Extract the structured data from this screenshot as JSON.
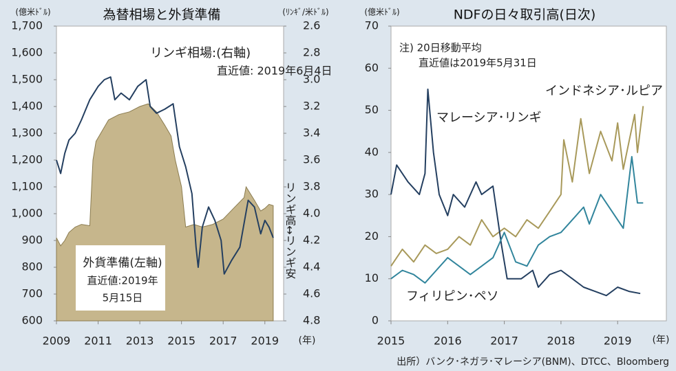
{
  "chart_data": [
    {
      "type": "combo",
      "title": "為替相場と外貨準備",
      "y_label": "(億米ﾄﾞﾙ)",
      "y2_label": "(ﾘﾝｷﾞ/米ﾄﾞﾙ)",
      "x_label": "(年)",
      "annotations": [
        "直近値: 2019年6月4日",
        "直近値:2019年",
        "5月15日",
        "リンギ高↔リンギ安"
      ],
      "xlim": [
        2009,
        2019.9
      ],
      "xticks": [
        2009,
        2011,
        2013,
        2015,
        2017,
        2019
      ],
      "ylim": [
        600,
        1700
      ],
      "yticks": [
        600,
        700,
        800,
        900,
        {
          "value": 1000,
          "label": "1,000"
        },
        {
          "value": 1100,
          "label": "1,100"
        },
        {
          "value": 1200,
          "label": "1,200"
        },
        {
          "value": 1300,
          "label": "1,300"
        },
        {
          "value": 1400,
          "label": "1,400"
        },
        {
          "value": 1500,
          "label": "1,500"
        },
        {
          "value": 1600,
          "label": "1,600"
        },
        {
          "value": 1700,
          "label": "1,700"
        }
      ],
      "y2lim": [
        2.6,
        4.8
      ],
      "y2_inverted": true,
      "y2ticks": [
        2.6,
        2.8,
        {
          "value": 3,
          "label": "3.0"
        },
        3.2,
        3.4,
        3.6,
        3.8,
        {
          "value": 4,
          "label": "4.0"
        },
        4.2,
        4.4,
        4.6,
        4.8
      ],
      "series": [
        {
          "name": "外貨準備(左軸)",
          "kind": "area",
          "color": "#c6b68c",
          "x": [
            2009,
            2009.2,
            2009.4,
            2009.6,
            2009.9,
            2010.2,
            2010.6,
            2010.75,
            2010.9,
            2011.2,
            2011.5,
            2012,
            2012.5,
            2013,
            2013.4,
            2013.8,
            2014.2,
            2014.5,
            2014.7,
            2015,
            2015.2,
            2015.6,
            2016,
            2016.5,
            2017,
            2017.5,
            2018,
            2018.1,
            2018.5,
            2018.8,
            2019,
            2019.2,
            2019.4
          ],
          "values": [
            910,
            880,
            900,
            930,
            950,
            960,
            955,
            1200,
            1270,
            1310,
            1350,
            1370,
            1380,
            1400,
            1410,
            1380,
            1330,
            1290,
            1200,
            1100,
            950,
            960,
            950,
            960,
            980,
            1020,
            1060,
            1100,
            1050,
            1010,
            1020,
            1035,
            1030
          ]
        },
        {
          "name": "リンギ相場:(右軸)",
          "kind": "line",
          "axis": "y2",
          "color": "#243f60",
          "x": [
            2009,
            2009.2,
            2009.4,
            2009.6,
            2009.9,
            2010.2,
            2010.6,
            2011,
            2011.3,
            2011.6,
            2011.8,
            2012.1,
            2012.5,
            2012.9,
            2013.3,
            2013.5,
            2013.8,
            2014.2,
            2014.6,
            2014.9,
            2015.2,
            2015.5,
            2015.7,
            2015.8,
            2016.0,
            2016.3,
            2016.6,
            2016.9,
            2017.05,
            2017.4,
            2017.8,
            2018.2,
            2018.5,
            2018.8,
            2019.0,
            2019.2,
            2019.4
          ],
          "values": [
            3.6,
            3.7,
            3.55,
            3.45,
            3.4,
            3.3,
            3.15,
            3.05,
            3.0,
            2.98,
            3.15,
            3.1,
            3.15,
            3.05,
            3.0,
            3.2,
            3.25,
            3.22,
            3.18,
            3.5,
            3.65,
            3.85,
            4.25,
            4.4,
            4.1,
            3.95,
            4.05,
            4.2,
            4.45,
            4.35,
            4.25,
            3.9,
            3.95,
            4.15,
            4.05,
            4.1,
            4.18
          ]
        }
      ]
    },
    {
      "type": "line",
      "title": "NDFの日々取引高(日次)",
      "y_label": "(億米ﾄﾞﾙ)",
      "x_label": "(年)",
      "annotations": [
        "注) 20日移動平均",
        "直近値は2019年5月31日"
      ],
      "xlim": [
        2015,
        2019.86
      ],
      "xticks": [
        2015,
        2016,
        2017,
        2018,
        2019
      ],
      "ylim": [
        0,
        70
      ],
      "yticks": [
        0,
        10,
        20,
        30,
        40,
        50,
        60,
        70
      ],
      "series": [
        {
          "name": "インドネシア･ルピア",
          "kind": "line",
          "color": "#a8995a",
          "x": [
            2015,
            2015.2,
            2015.4,
            2015.6,
            2015.8,
            2016,
            2016.2,
            2016.4,
            2016.6,
            2016.8,
            2017,
            2017.2,
            2017.4,
            2017.6,
            2017.8,
            2018,
            2018.05,
            2018.2,
            2018.35,
            2018.5,
            2018.7,
            2018.9,
            2019,
            2019.1,
            2019.3,
            2019.35,
            2019.45
          ],
          "values": [
            13,
            17,
            14,
            18,
            16,
            17,
            20,
            18,
            24,
            20,
            22,
            20,
            24,
            22,
            26,
            30,
            43,
            33,
            48,
            35,
            45,
            38,
            47,
            36,
            49,
            40,
            51
          ]
        },
        {
          "name": "マレーシア･リンギ",
          "kind": "line",
          "color": "#243f60",
          "x": [
            2015,
            2015.1,
            2015.3,
            2015.5,
            2015.6,
            2015.65,
            2015.75,
            2015.85,
            2016,
            2016.1,
            2016.3,
            2016.5,
            2016.6,
            2016.8,
            2016.95,
            2017.05,
            2017.3,
            2017.5,
            2017.6,
            2017.8,
            2018,
            2018.2,
            2018.4,
            2018.6,
            2018.8,
            2019,
            2019.2,
            2019.4
          ],
          "values": [
            30,
            37,
            33,
            30,
            35,
            55,
            40,
            30,
            25,
            30,
            27,
            33,
            30,
            32,
            18,
            10,
            10,
            12,
            8,
            11,
            12,
            10,
            8,
            7,
            6,
            8,
            7,
            6.5
          ]
        },
        {
          "name": "フィリピン･ペソ",
          "kind": "line",
          "color": "#31859c",
          "x": [
            2015,
            2015.2,
            2015.4,
            2015.6,
            2015.8,
            2016,
            2016.2,
            2016.4,
            2016.6,
            2016.8,
            2017,
            2017.2,
            2017.4,
            2017.6,
            2017.8,
            2018,
            2018.2,
            2018.4,
            2018.5,
            2018.7,
            2018.9,
            2019.1,
            2019.25,
            2019.35,
            2019.45
          ],
          "values": [
            10,
            12,
            11,
            9,
            12,
            15,
            13,
            11,
            13,
            15,
            21,
            14,
            13,
            18,
            20,
            21,
            24,
            27,
            23,
            30,
            26,
            22,
            39,
            28,
            28
          ]
        }
      ]
    }
  ],
  "source": "出所）バンク･ネガラ･マレーシア(BNM)、DTCC、Bloomberg"
}
